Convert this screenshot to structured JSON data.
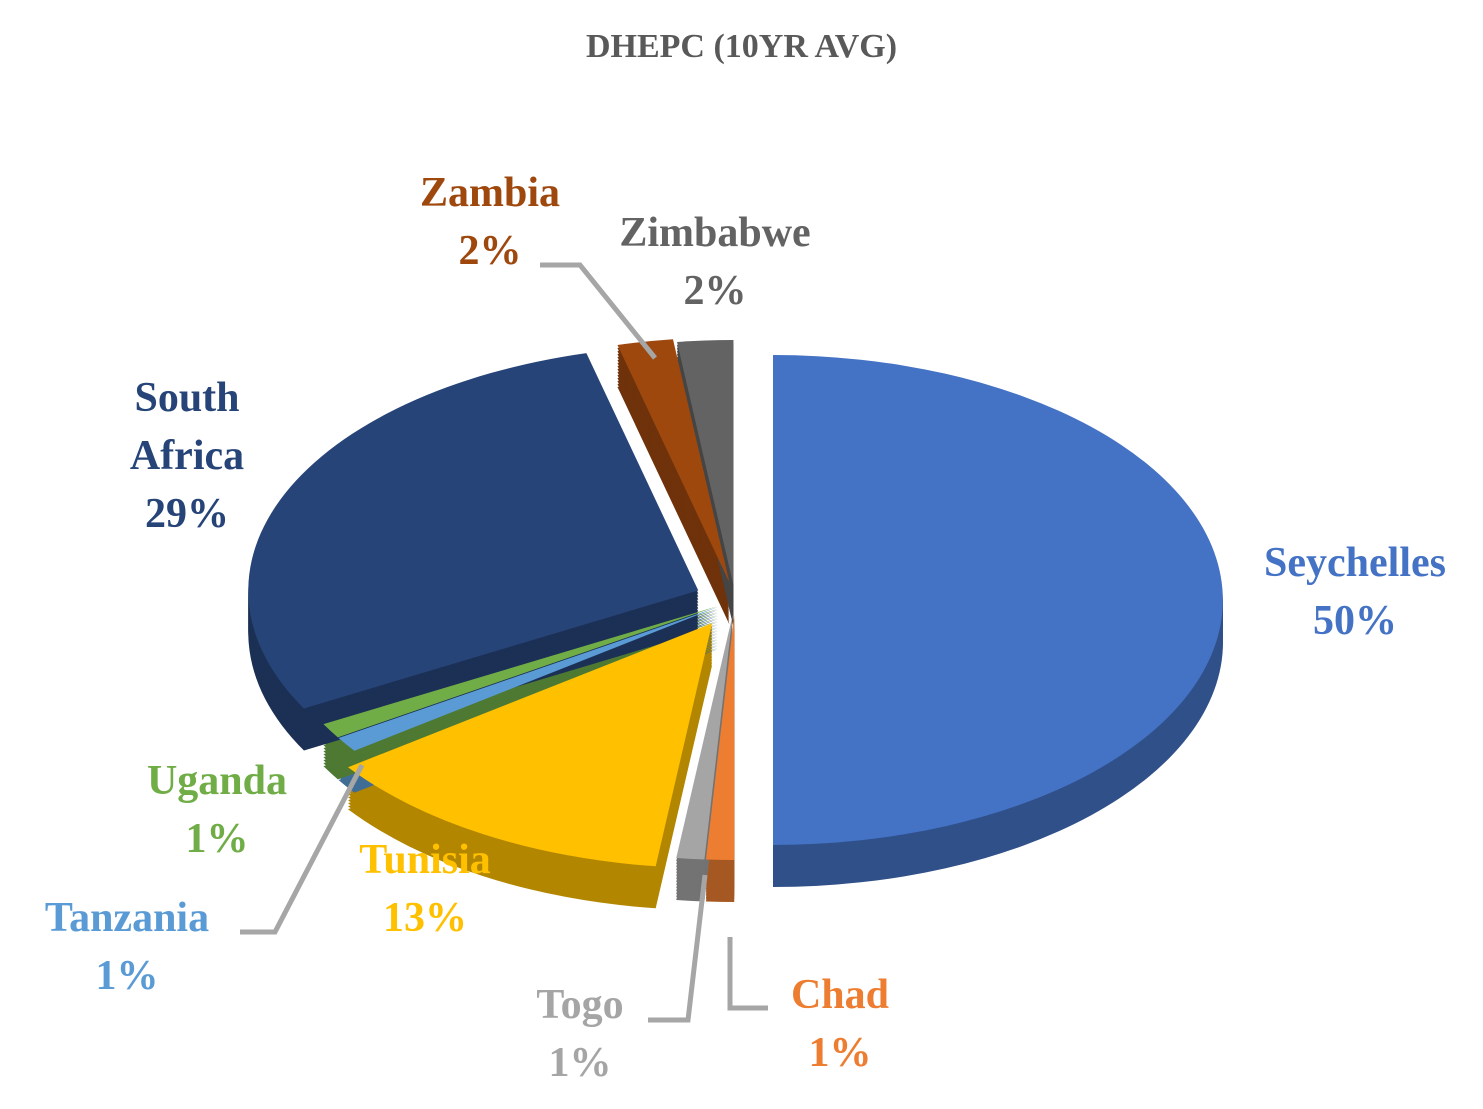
{
  "chart_data": {
    "type": "pie",
    "title": "DHEPC (10YR AVG)",
    "categories": [
      "Seychelles",
      "Chad",
      "Togo",
      "Tunisia",
      "Tanzania",
      "Uganda",
      "South Africa",
      "Zambia",
      "Zimbabwe"
    ],
    "values": [
      50,
      1,
      1,
      13,
      1,
      1,
      29,
      2,
      2
    ],
    "value_labels": [
      "50%",
      "1%",
      "1%",
      "13%",
      "1%",
      "1%",
      "29%",
      "2%",
      "2%"
    ],
    "colors": [
      "#4472c4",
      "#ed7d31",
      "#a5a5a5",
      "#ffc000",
      "#5b9bd5",
      "#70ad47",
      "#264478",
      "#9e480e",
      "#636363"
    ]
  }
}
